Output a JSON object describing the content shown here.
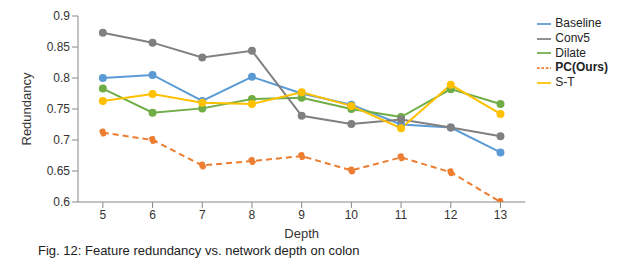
{
  "chart_data": {
    "type": "line",
    "x_label": "Depth",
    "y_label": "Redundancy",
    "x": [
      5,
      6,
      7,
      8,
      9,
      10,
      11,
      12,
      13
    ],
    "xlim": [
      4.5,
      13.5
    ],
    "xticks": [
      5,
      6,
      7,
      8,
      9,
      10,
      11,
      12,
      13
    ],
    "ylim": [
      0.6,
      0.9
    ],
    "yticks": [
      0.6,
      0.65,
      0.7,
      0.75,
      0.8,
      0.85,
      0.9
    ],
    "grid": false,
    "legend": "right",
    "annotations": [
      "Fig. 12: Feature redundancy vs. network depth on colon"
    ],
    "series": [
      {
        "name": "Baseline",
        "color": "#5b9bd5",
        "marker": "circle",
        "line_style": "solid",
        "values": [
          0.8,
          0.805,
          0.763,
          0.802,
          0.775,
          0.757,
          0.725,
          0.72,
          0.68
        ]
      },
      {
        "name": "Dilate",
        "color": "#70ad47",
        "marker": "circle",
        "line_style": "solid",
        "values": [
          0.783,
          0.744,
          0.751,
          0.766,
          0.768,
          0.75,
          0.737,
          0.782,
          0.758
        ]
      },
      {
        "name": "Conv5",
        "color": "#808080",
        "marker": "circle",
        "line_style": "solid",
        "values": [
          0.873,
          0.857,
          0.833,
          0.844,
          0.739,
          0.726,
          0.733,
          0.72,
          0.706
        ]
      },
      {
        "name": "S-T",
        "color": "#ffc000",
        "marker": "circle",
        "line_style": "solid",
        "values": [
          0.763,
          0.774,
          0.76,
          0.758,
          0.777,
          0.755,
          0.719,
          0.789,
          0.742
        ]
      },
      {
        "name": "PC(Ours)",
        "color": "#ed7d31",
        "marker": "circle",
        "line_style": "dashed",
        "values": [
          0.712,
          0.7,
          0.659,
          0.666,
          0.674,
          0.651,
          0.672,
          0.648,
          0.6
        ]
      }
    ]
  }
}
